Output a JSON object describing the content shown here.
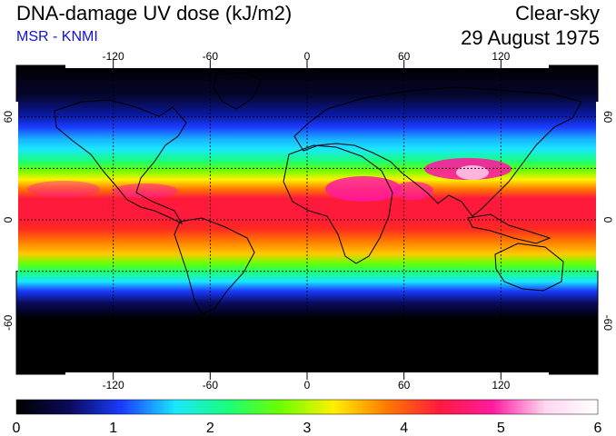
{
  "header": {
    "title": "DNA-damage UV dose (kJ/m2)",
    "source": "MSR - KNMI",
    "sky": "Clear-sky",
    "date": "29 August 1975"
  },
  "colors": {
    "source_text": "#1010e0",
    "scale": [
      "#000000",
      "#0a0a5a",
      "#1a3cff",
      "#19e6ff",
      "#19ff7a",
      "#6cff00",
      "#fff000",
      "#ff7a00",
      "#ff1a3c",
      "#ff1aa0",
      "#ffd6f0",
      "#ffffff"
    ]
  },
  "map": {
    "projection": "equirectangular",
    "lon_ticks": [
      -120,
      -60,
      0,
      60,
      120
    ],
    "lat_ticks": [
      -60,
      0,
      60
    ],
    "gridlines": "dotted",
    "lon_range": [
      -180,
      180
    ],
    "lat_range": [
      -90,
      90
    ]
  },
  "colorbar": {
    "ticks": [
      "0",
      "1",
      "2",
      "3",
      "4",
      "5",
      "6"
    ],
    "min": 0,
    "max": 6
  }
}
